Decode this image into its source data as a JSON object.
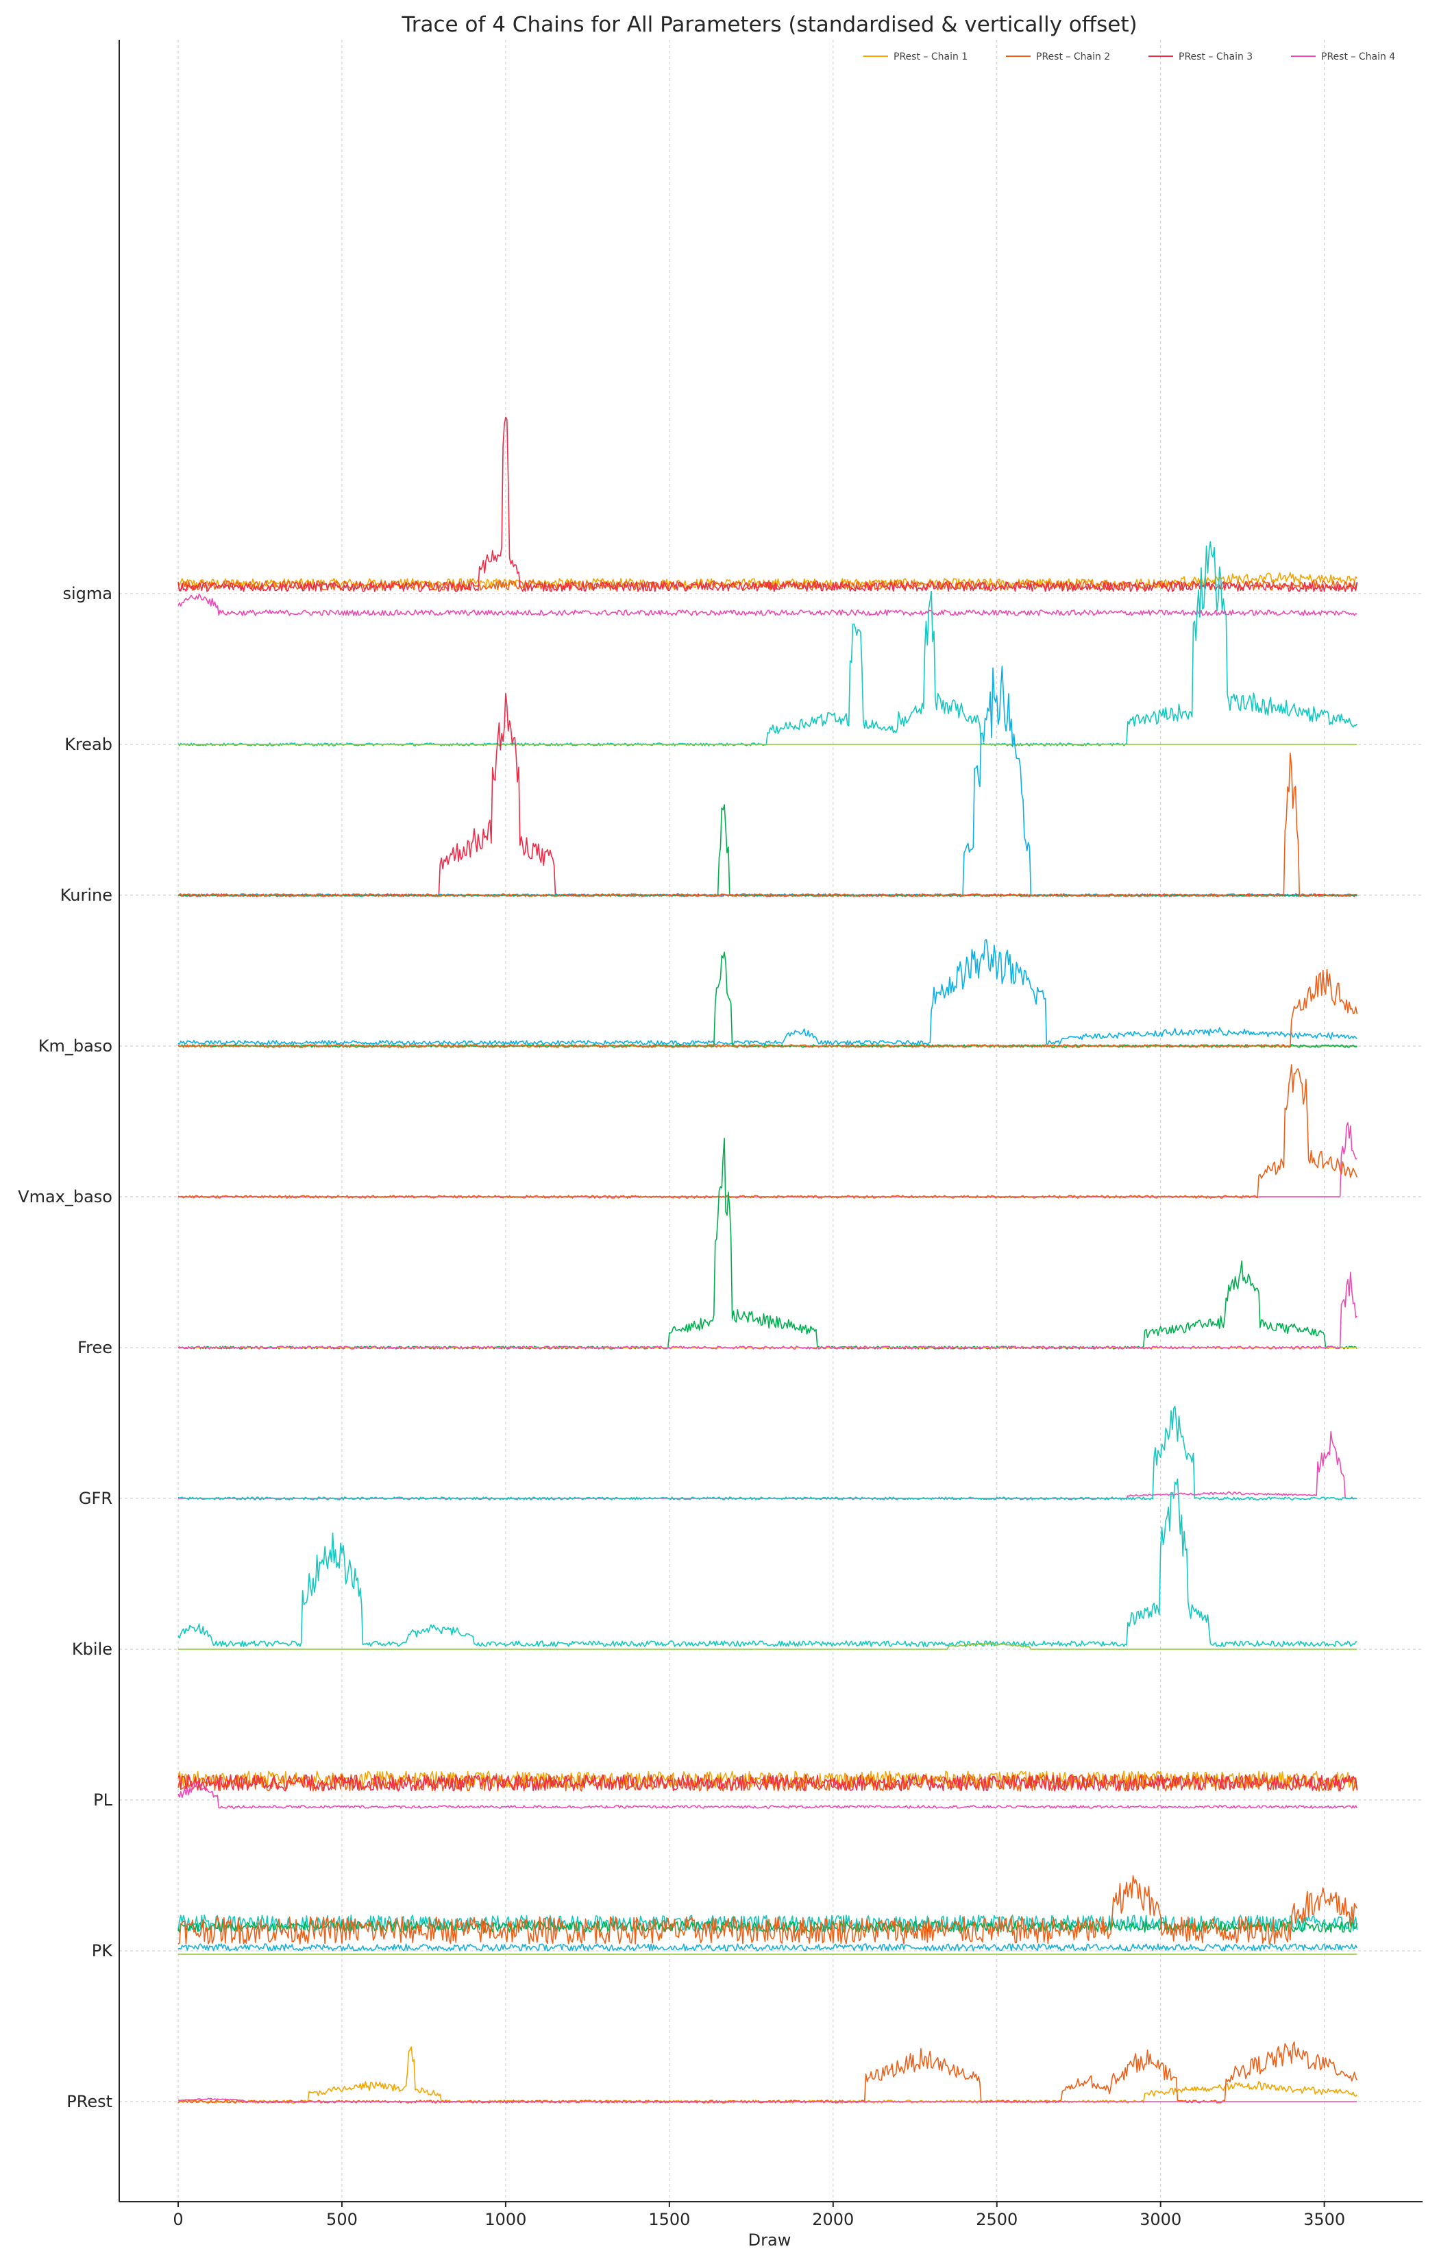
{
  "chart_data": {
    "type": "line",
    "title": "Trace of 4 Chains for All Parameters (standardised & vertically offset)",
    "xlabel": "Draw",
    "ylabel": "",
    "xlim": [
      -180,
      3800
    ],
    "xticks": [
      0,
      500,
      1000,
      1500,
      2000,
      2500,
      3000,
      3500
    ],
    "n_draws": 3600,
    "grid": true,
    "legend_position": "top-right",
    "parameters": [
      "PRest",
      "PK",
      "PL",
      "Kbile",
      "GFR",
      "Free",
      "Vmax_baso",
      "Km_baso",
      "Kurine",
      "Kreab",
      "sigma"
    ],
    "palette": [
      "#f5a400",
      "#ee6018",
      "#ee2c4a",
      "#ee4ab4",
      "#f5b800",
      "#f07020",
      "#8cc832",
      "#00c08a",
      "#0ab0e6",
      "#14c8c0",
      "#e84aa8",
      "#ee3a3a",
      "#00b050",
      "#1ab0d8"
    ],
    "legend": [
      {
        "label": "PRest – Chain 1",
        "color": "#f5a400"
      },
      {
        "label": "PRest – Chain 2",
        "color": "#ee6018"
      },
      {
        "label": "PRest – Chain 3",
        "color": "#ee2c4a"
      },
      {
        "label": "PRest – Chain 4",
        "color": "#ee4ab4"
      }
    ],
    "trace_segments": [
      {
        "param": "sigma",
        "color": "#f5a400",
        "level": 0.15,
        "noise": 0.07,
        "spikes": [
          [
            3050,
            3650,
            0.1
          ]
        ]
      },
      {
        "param": "sigma",
        "color": "#ee6018",
        "level": 0.12,
        "noise": 0.07,
        "spikes": []
      },
      {
        "param": "sigma",
        "color": "#ee2c4a",
        "level": 0.1,
        "noise": 0.07,
        "spikes": [
          [
            920,
            1040,
            0.6
          ],
          [
            990,
            1010,
            3.0
          ]
        ]
      },
      {
        "param": "sigma",
        "color": "#ee4ab4",
        "level": -0.28,
        "noise": 0.04,
        "spikes": [
          [
            0,
            120,
            0.3
          ]
        ]
      },
      {
        "param": "Kreab",
        "color": "#14c8c0",
        "level": 0.0,
        "noise": 0.02,
        "spikes": [
          [
            1800,
            2200,
            0.5
          ],
          [
            2050,
            2090,
            2.1
          ],
          [
            2200,
            2450,
            0.8
          ],
          [
            2280,
            2310,
            2.0
          ],
          [
            2900,
            3600,
            0.8
          ],
          [
            3100,
            3200,
            2.8
          ]
        ]
      },
      {
        "param": "Kreab",
        "color": "#8cc832",
        "level": 0.0,
        "noise": 0.0,
        "spikes": []
      },
      {
        "param": "Kurine",
        "color": "#ee2c4a",
        "level": 0.0,
        "noise": 0.02,
        "spikes": [
          [
            800,
            1150,
            1.2
          ],
          [
            960,
            1040,
            2.4
          ]
        ]
      },
      {
        "param": "Kurine",
        "color": "#0ab0e6",
        "level": 0.0,
        "noise": 0.02,
        "spikes": [
          [
            2400,
            2600,
            1.5
          ],
          [
            2430,
            2580,
            2.3
          ]
        ]
      },
      {
        "param": "Kurine",
        "color": "#00b050",
        "level": 0.0,
        "noise": 0.0,
        "spikes": [
          [
            1650,
            1680,
            1.6
          ]
        ]
      },
      {
        "param": "Kurine",
        "color": "#ee6018",
        "level": 0.0,
        "noise": 0.02,
        "spikes": [
          [
            3380,
            3420,
            2.3
          ]
        ]
      },
      {
        "param": "Km_baso",
        "color": "#0ab0e6",
        "level": 0.05,
        "noise": 0.03,
        "spikes": [
          [
            1850,
            1950,
            0.2
          ],
          [
            2300,
            2650,
            1.6
          ],
          [
            2700,
            3600,
            0.2
          ]
        ]
      },
      {
        "param": "Km_baso",
        "color": "#8cc832",
        "level": 0.0,
        "noise": 0.0,
        "spikes": []
      },
      {
        "param": "Km_baso",
        "color": "#00b050",
        "level": 0.0,
        "noise": 0.02,
        "spikes": [
          [
            1640,
            1690,
            1.6
          ]
        ]
      },
      {
        "param": "Km_baso",
        "color": "#ee6018",
        "level": 0.0,
        "noise": 0.02,
        "spikes": [
          [
            3400,
            3600,
            1.2
          ]
        ]
      },
      {
        "param": "Vmax_baso",
        "color": "#ee4ab4",
        "level": 0.0,
        "noise": 0.0,
        "spikes": [
          [
            3550,
            3600,
            1.2
          ]
        ]
      },
      {
        "param": "Vmax_baso",
        "color": "#ee6018",
        "level": 0.0,
        "noise": 0.02,
        "spikes": [
          [
            3300,
            3600,
            0.8
          ],
          [
            3380,
            3450,
            1.8
          ]
        ]
      },
      {
        "param": "Free",
        "color": "#00b050",
        "level": 0.0,
        "noise": 0.02,
        "spikes": [
          [
            1500,
            1950,
            0.6
          ],
          [
            1640,
            1690,
            3.0
          ],
          [
            2950,
            3500,
            0.5
          ],
          [
            3200,
            3300,
            1.0
          ]
        ]
      },
      {
        "param": "Free",
        "color": "#f5b800",
        "level": 0.0,
        "noise": 0.0,
        "spikes": []
      },
      {
        "param": "Free",
        "color": "#ee4ab4",
        "level": 0.0,
        "noise": 0.02,
        "spikes": [
          [
            3550,
            3600,
            1.2
          ]
        ]
      },
      {
        "param": "GFR",
        "color": "#ee4ab4",
        "level": 0.0,
        "noise": 0.0,
        "spikes": [
          [
            2900,
            3500,
            0.1
          ],
          [
            3480,
            3560,
            1.0
          ]
        ]
      },
      {
        "param": "GFR",
        "color": "#14c8c0",
        "level": 0.0,
        "noise": 0.02,
        "spikes": [
          [
            2980,
            3100,
            1.4
          ]
        ]
      },
      {
        "param": "Kbile",
        "color": "#14c8c0",
        "level": 0.08,
        "noise": 0.04,
        "spikes": [
          [
            0,
            100,
            0.3
          ],
          [
            380,
            560,
            1.8
          ],
          [
            700,
            900,
            0.3
          ],
          [
            2900,
            3150,
            0.8
          ],
          [
            3000,
            3080,
            2.2
          ]
        ]
      },
      {
        "param": "Kbile",
        "color": "#8cc832",
        "level": 0.0,
        "noise": 0.0,
        "spikes": [
          [
            2350,
            2600,
            0.1
          ]
        ]
      },
      {
        "param": "PL",
        "color": "#f5a400",
        "level": 0.3,
        "noise": 0.12,
        "spikes": []
      },
      {
        "param": "PL",
        "color": "#ee6018",
        "level": 0.25,
        "noise": 0.12,
        "spikes": []
      },
      {
        "param": "PL",
        "color": "#ee2c4a",
        "level": 0.25,
        "noise": 0.12,
        "spikes": []
      },
      {
        "param": "PL",
        "color": "#ee4ab4",
        "level": -0.1,
        "noise": 0.02,
        "spikes": [
          [
            0,
            120,
            0.4
          ]
        ]
      },
      {
        "param": "PK",
        "color": "#14c8c0",
        "level": 0.4,
        "noise": 0.12,
        "spikes": []
      },
      {
        "param": "PK",
        "color": "#1ab0d8",
        "level": 0.05,
        "noise": 0.05,
        "spikes": []
      },
      {
        "param": "PK",
        "color": "#00b050",
        "level": 0.35,
        "noise": 0.08,
        "spikes": []
      },
      {
        "param": "PK",
        "color": "#8cc832",
        "level": -0.05,
        "noise": 0.0,
        "spikes": []
      },
      {
        "param": "PK",
        "color": "#ee6018",
        "level": 0.3,
        "noise": 0.2,
        "spikes": [
          [
            2850,
            3000,
            0.8
          ],
          [
            3400,
            3600,
            0.6
          ]
        ]
      },
      {
        "param": "PRest",
        "color": "#f5a400",
        "level": 0.0,
        "noise": 0.02,
        "spikes": [
          [
            400,
            800,
            0.3
          ],
          [
            700,
            720,
            0.8
          ],
          [
            2950,
            3600,
            0.3
          ]
        ]
      },
      {
        "param": "PRest",
        "color": "#ee6018",
        "level": 0.0,
        "noise": 0.02,
        "spikes": [
          [
            2100,
            2450,
            0.8
          ],
          [
            2700,
            2850,
            0.4
          ],
          [
            2850,
            3050,
            0.8
          ],
          [
            3200,
            3600,
            0.9
          ]
        ]
      },
      {
        "param": "PRest",
        "color": "#ee4ab4",
        "level": 0.0,
        "noise": 0.0,
        "spikes": [
          [
            0,
            200,
            0.05
          ]
        ]
      }
    ]
  }
}
